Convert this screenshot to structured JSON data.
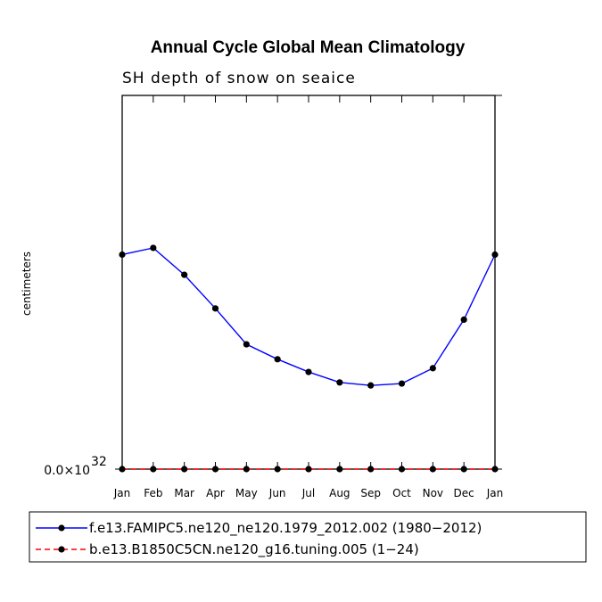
{
  "chart_data": {
    "type": "line",
    "title": "Annual Cycle Global Mean Climatology",
    "subtitle": "SH depth of snow on seaice",
    "ylabel": "centimeters",
    "xlabel": "",
    "categories": [
      "Jan",
      "Feb",
      "Mar",
      "Apr",
      "May",
      "Jun",
      "Jul",
      "Aug",
      "Sep",
      "Oct",
      "Nov",
      "Dec",
      "Jan"
    ],
    "ytick_label": {
      "mantissa": "0.0×10",
      "exponent": "32"
    },
    "ylim": [
      0,
      1
    ],
    "series": [
      {
        "name": "f.e13.FAMIPC5.ne120_ne120.1979_2012.002 (1980−2012)",
        "color": "#0000ff",
        "dash": "solid",
        "values": [
          0.574,
          0.592,
          0.52,
          0.43,
          0.334,
          0.294,
          0.26,
          0.232,
          0.224,
          0.229,
          0.27,
          0.4,
          0.574
        ]
      },
      {
        "name": "b.e13.B1850C5CN.ne120_g16.tuning.005 (1−24)",
        "color": "#ff0000",
        "dash": "dashed",
        "values": [
          0,
          0,
          0,
          0,
          0,
          0,
          0,
          0,
          0,
          0,
          0,
          0,
          0
        ]
      }
    ]
  }
}
